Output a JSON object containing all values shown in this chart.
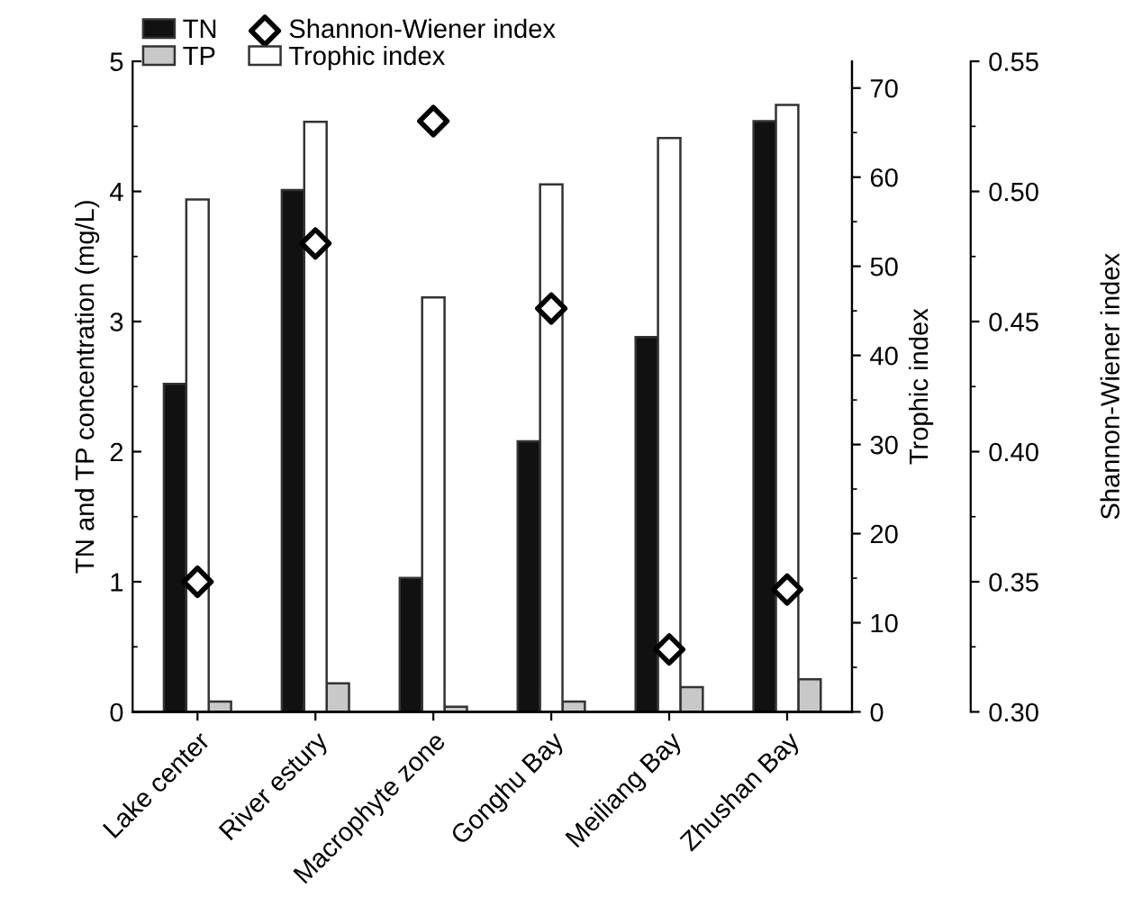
{
  "chart_data": {
    "type": "bar",
    "categories": [
      "Lake center",
      "River estury",
      "Macrophyte zone",
      "Gonghu Bay",
      "Meiliang Bay",
      "Zhushan Bay"
    ],
    "series": [
      {
        "name": "TN",
        "color": "#111111",
        "values": [
          2.52,
          4.01,
          1.03,
          2.08,
          2.88,
          4.54
        ]
      },
      {
        "name": "Trophic index",
        "color": "#ffffff",
        "axis": "y2",
        "values": [
          57.5,
          66.2,
          46.5,
          59.2,
          64.4,
          68.1
        ]
      },
      {
        "name": "TP",
        "color": "#c8c8c8",
        "values": [
          0.08,
          0.22,
          0.04,
          0.08,
          0.19,
          0.25
        ]
      },
      {
        "name": "Shannon-Wiener index",
        "type": "scatter",
        "color": "#ffffff",
        "axis": "y3",
        "marker": "diamond",
        "values": [
          0.35,
          0.48,
          0.527,
          0.455,
          0.324,
          0.347
        ]
      }
    ],
    "ylabel": "TN and TP concentration (mg/L)",
    "y2label": "Trophic index",
    "y3label": "Shannon-Wiener index",
    "ylim": [
      0,
      5
    ],
    "yticks": [
      0,
      1,
      2,
      3,
      4,
      5
    ],
    "y2lim": [
      0,
      73
    ],
    "y2ticks": [
      0,
      10,
      20,
      30,
      40,
      50,
      60,
      70
    ],
    "y3lim": [
      0.3,
      0.55
    ],
    "y3ticks": [
      {
        "value": 0.3,
        "label": "0.30"
      },
      {
        "value": 0.35,
        "label": "0.35"
      },
      {
        "value": 0.4,
        "label": "0.40"
      },
      {
        "value": 0.45,
        "label": "0.45"
      },
      {
        "value": 0.5,
        "label": "0.50"
      },
      {
        "value": 0.55,
        "label": "0.55"
      }
    ],
    "legend": "top",
    "grid": false
  }
}
